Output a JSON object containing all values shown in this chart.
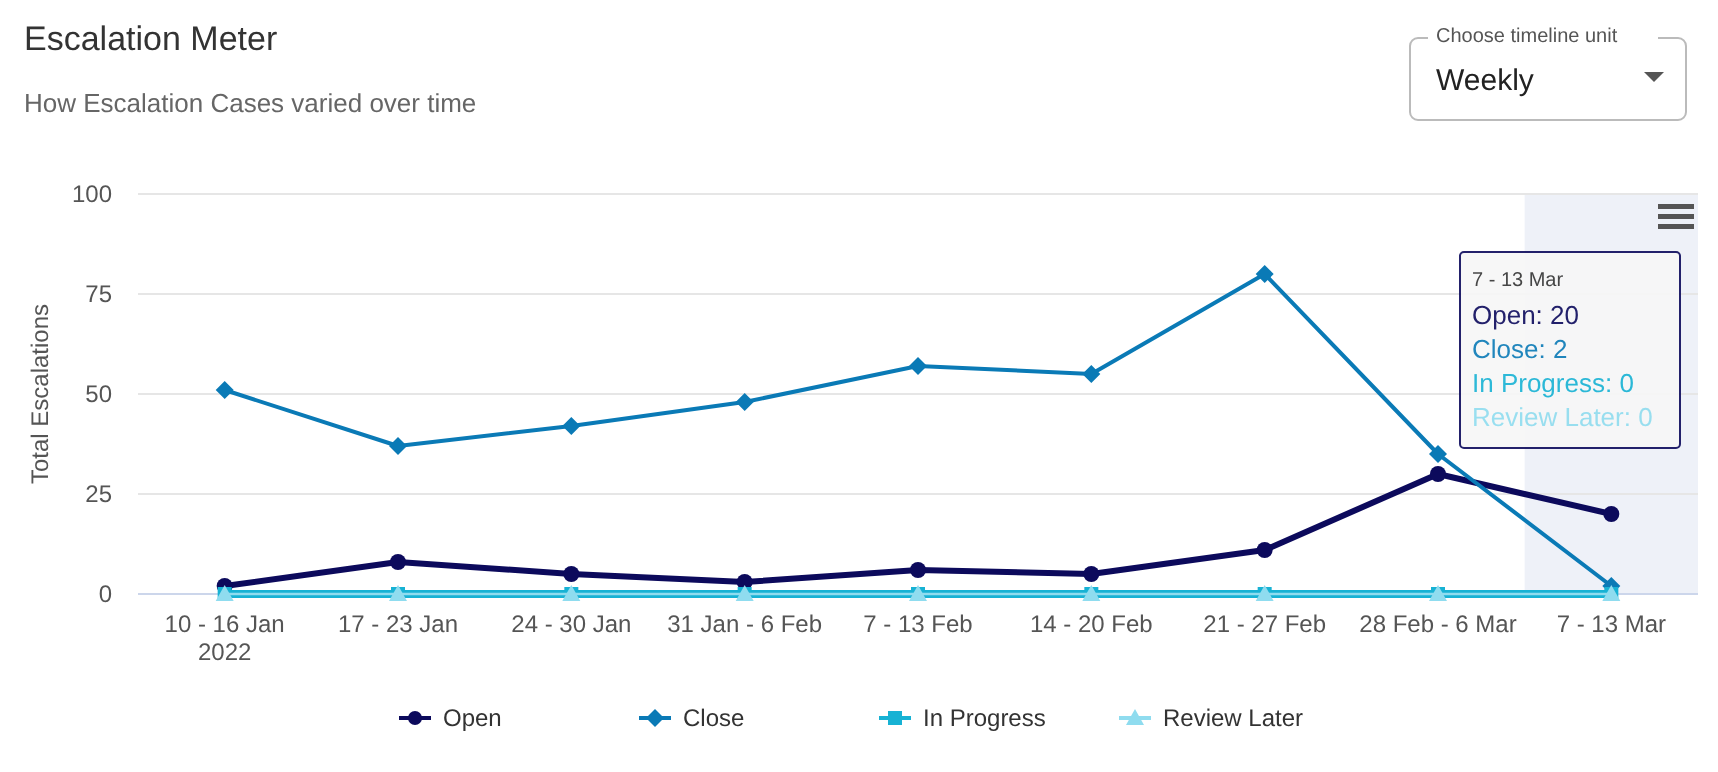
{
  "chart_data": {
    "type": "line",
    "title": "Escalation Meter",
    "subtitle": "How Escalation Cases varied over time",
    "ylabel": "Total Escalations",
    "categories": [
      "10 - 16 Jan\n2022",
      "17 - 23 Jan",
      "24 - 30 Jan",
      "31 Jan - 6 Feb",
      "7 - 13 Feb",
      "14 - 20 Feb",
      "21 - 27 Feb",
      "28 Feb - 6 Mar",
      "7 - 13 Mar"
    ],
    "series": [
      {
        "name": "Open",
        "color": "#0c0a5c",
        "marker": "circle",
        "values": [
          2,
          8,
          5,
          3,
          6,
          5,
          11,
          30,
          20
        ]
      },
      {
        "name": "Close",
        "color": "#0a7ab6",
        "marker": "diamond",
        "values": [
          51,
          37,
          42,
          48,
          57,
          55,
          80,
          35,
          2
        ]
      },
      {
        "name": "In Progress",
        "color": "#17b2d4",
        "marker": "square",
        "values": [
          0,
          0,
          0,
          0,
          0,
          0,
          0,
          0,
          0
        ]
      },
      {
        "name": "Review Later",
        "color": "#8fdcef",
        "marker": "triangle",
        "values": [
          0,
          0,
          0,
          0,
          0,
          0,
          0,
          0,
          0
        ]
      }
    ],
    "ylim": [
      0,
      100
    ],
    "yticks": [
      0,
      25,
      50,
      75,
      100
    ],
    "grid": "y",
    "legend": "bottom",
    "bands": [
      {
        "axis": "x",
        "from": "7 - 13 Mar",
        "to": "7 - 13 Mar",
        "color": "#eef1f8"
      }
    ],
    "annotations": [
      "Choose timeline unit",
      "Weekly",
      "7 - 13 Mar",
      "Open: 20",
      "Close: 2",
      "In Progress: 0",
      "Review Later: 0"
    ]
  }
}
